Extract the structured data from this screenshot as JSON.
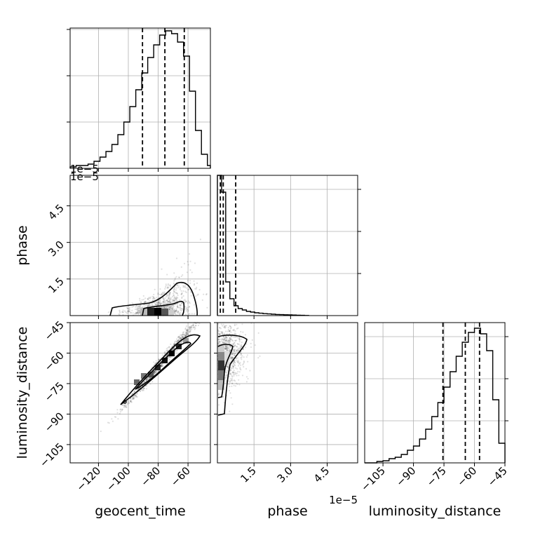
{
  "figure": {
    "offset_geocent": "1e−5",
    "offset_phase_x": "1e−5",
    "offset_phase_y": "1e−5"
  },
  "chart_data": {
    "type": "corner",
    "parameters": [
      "geocent_time",
      "phase",
      "luminosity_distance"
    ],
    "axis_labels": {
      "geocent_time": "geocent_time",
      "phase": "phase",
      "luminosity_distance": "luminosity_distance"
    },
    "ranges": {
      "geocent_time": [
        -139,
        -45
      ],
      "phase": [
        0,
        5.75e-05
      ],
      "luminosity_distance": [
        -114,
        -45
      ]
    },
    "grid": true,
    "ticks": {
      "geocent_time": {
        "values": [
          -120,
          -100,
          -80,
          -60
        ],
        "labels": [
          "−120",
          "−100",
          "−80",
          "−60"
        ]
      },
      "phase": {
        "values": [
          1.5e-05,
          3e-05,
          4.5e-05
        ],
        "labels": [
          "1.5",
          "3.0",
          "4.5"
        ]
      },
      "luminosity_distance_y": {
        "values": [
          -45,
          -60,
          -75,
          -90,
          -105
        ],
        "labels": [
          "−45",
          "−60",
          "−75",
          "−90",
          "−105"
        ]
      },
      "luminosity_distance_x": {
        "values": [
          -105,
          -90,
          -75,
          -60,
          -45
        ],
        "labels": [
          "−105",
          "−90",
          "−75",
          "−60",
          "−45"
        ]
      }
    },
    "histograms": {
      "geocent_time": {
        "edges": [
          -139,
          -135,
          -131,
          -127,
          -123,
          -119,
          -115,
          -111,
          -107,
          -103,
          -99,
          -95,
          -91,
          -87,
          -83,
          -79,
          -75,
          -71,
          -67,
          -63,
          -59,
          -55,
          -51,
          -47,
          -45
        ],
        "counts": [
          0.01,
          0.02,
          0.02,
          0.03,
          0.05,
          0.08,
          0.12,
          0.17,
          0.24,
          0.33,
          0.44,
          0.56,
          0.68,
          0.79,
          0.88,
          0.95,
          0.98,
          0.96,
          0.9,
          0.8,
          0.55,
          0.27,
          0.1,
          0.02
        ],
        "quantiles": [
          -90.5,
          -75.5,
          -62.5
        ]
      },
      "phase": {
        "edges": [
          0,
          1.7e-06,
          3.4e-06,
          5.1e-06,
          6.8e-06,
          8.5e-06,
          1.02e-05,
          1.19e-05,
          1.36e-05,
          1.53e-05,
          1.7e-05,
          1.87e-05,
          2.04e-05,
          2.21e-05,
          2.38e-05,
          2.55e-05,
          2.72e-05,
          2.89e-05,
          3.06e-05,
          3.23e-05,
          3.4e-05,
          3.57e-05,
          3.74e-05
        ],
        "counts": [
          1.0,
          0.88,
          0.24,
          0.12,
          0.07,
          0.05,
          0.04,
          0.03,
          0.025,
          0.02,
          0.017,
          0.014,
          0.012,
          0.01,
          0.008,
          0.007,
          0.006,
          0.005,
          0.004,
          0.003,
          0.002,
          0.001
        ],
        "quantiles": [
          1.2e-06,
          2.4e-06,
          7.5e-06
        ]
      },
      "luminosity_distance": {
        "edges": [
          -114,
          -111,
          -108,
          -105,
          -102,
          -99,
          -96,
          -93,
          -90,
          -87,
          -84,
          -81,
          -78,
          -75,
          -72,
          -69,
          -66,
          -63,
          -60,
          -57,
          -54,
          -51,
          -48,
          -45
        ],
        "counts": [
          0.0,
          0.0,
          0.01,
          0.015,
          0.03,
          0.04,
          0.06,
          0.09,
          0.12,
          0.17,
          0.24,
          0.33,
          0.43,
          0.54,
          0.65,
          0.76,
          0.86,
          0.93,
          0.96,
          0.92,
          0.8,
          0.45,
          0.14
        ],
        "quantiles": [
          -75.5,
          -64.5,
          -57.5
        ]
      }
    }
  }
}
